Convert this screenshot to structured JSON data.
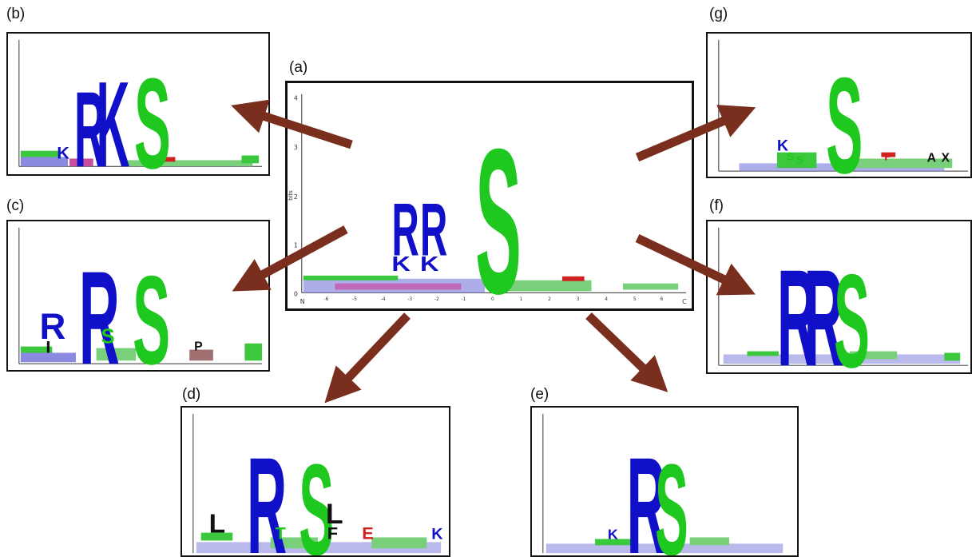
{
  "panels": [
    {
      "id": "a",
      "label": "(a)",
      "y_axis_title": "bits",
      "y_ticks": [
        "0",
        "1",
        "2",
        "3",
        "4"
      ],
      "x_ticks": [
        "N",
        "-6",
        "-5",
        "-4",
        "-3",
        "-2",
        "-1",
        "0",
        "1",
        "2",
        "3",
        "4",
        "5",
        "6",
        "C"
      ],
      "dominant_letters": [
        "R",
        "R",
        "K",
        "K",
        "S"
      ]
    },
    {
      "id": "b",
      "label": "(b)",
      "dominant_letters": [
        "R",
        "K",
        "K",
        "K",
        "S"
      ]
    },
    {
      "id": "c",
      "label": "(c)",
      "dominant_letters": [
        "R",
        "I",
        "R",
        "S",
        "S",
        "P"
      ]
    },
    {
      "id": "d",
      "label": "(d)",
      "dominant_letters": [
        "L",
        "R",
        "S",
        "L",
        "F",
        "E",
        "K"
      ]
    },
    {
      "id": "e",
      "label": "(e)",
      "dominant_letters": [
        "K",
        "R",
        "S"
      ]
    },
    {
      "id": "f",
      "label": "(f)",
      "dominant_letters": [
        "R",
        "R",
        "S"
      ]
    },
    {
      "id": "g",
      "label": "(g)",
      "dominant_letters": [
        "K",
        "S",
        "S",
        "P",
        "A",
        "X"
      ]
    }
  ],
  "colors": {
    "basic_residue": "#1010c8",
    "polar_residue": "#1ec81e",
    "hydrophobic_residue": "#000000",
    "acidic_residue": "#d02020",
    "arrow": "#7a2e1e",
    "frame": "#111111"
  }
}
